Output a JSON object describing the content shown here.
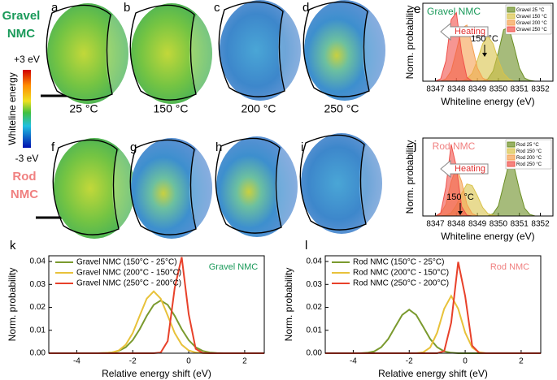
{
  "image_panels": [
    {
      "label": "a",
      "caption": "25 °C"
    },
    {
      "label": "b",
      "caption": "150 °C"
    },
    {
      "label": "c",
      "caption": "200 °C"
    },
    {
      "label": "d",
      "caption": "250 °C"
    },
    {
      "label": "f"
    },
    {
      "label": "g"
    },
    {
      "label": "h"
    },
    {
      "label": "i"
    }
  ],
  "row_labels": [
    {
      "lines": [
        "Gravel",
        "NMC"
      ],
      "color": "#1a9a5a"
    },
    {
      "lines": [
        "Rod",
        "NMC"
      ],
      "color": "#f08080"
    }
  ],
  "colorbar": {
    "max_label": "+3 eV",
    "min_label": "-3 eV",
    "label": "Whiteline energy"
  },
  "chart_data": [
    {
      "type": "area",
      "panel": "e",
      "title": "Gravel NMC",
      "title_color": "#1a9a5a",
      "annotations": [
        "Heating",
        "150 °C"
      ],
      "xlabel": "Whiteline energy (eV)",
      "ylabel": "Norm. probability",
      "legend": "upper right",
      "xlim": [
        8346.4,
        8352.6
      ],
      "xticks": [
        8347,
        8348,
        8349,
        8350,
        8351,
        8352
      ],
      "ylim": [
        0,
        1
      ],
      "x": [
        8347,
        8347.25,
        8347.5,
        8347.75,
        8348,
        8348.25,
        8348.5,
        8348.75,
        8349,
        8349.25,
        8349.5,
        8349.75,
        8350,
        8350.25,
        8350.5,
        8350.75,
        8351,
        8351.25,
        8351.5,
        8351.75,
        8352
      ],
      "series": [
        {
          "name": "Gravel 25 °C",
          "color": "#6b8e23",
          "values": [
            0,
            0,
            0,
            0,
            0,
            0,
            0,
            0,
            0,
            0,
            0.03,
            0.13,
            0.37,
            0.66,
            0.69,
            0.44,
            0.17,
            0.04,
            0.01,
            0,
            0
          ]
        },
        {
          "name": "Gravel 150 °C",
          "color": "#d9c34a",
          "values": [
            0,
            0,
            0,
            0,
            0,
            0,
            0.03,
            0.1,
            0.27,
            0.48,
            0.58,
            0.48,
            0.27,
            0.1,
            0.03,
            0,
            0,
            0,
            0,
            0,
            0
          ]
        },
        {
          "name": "Gravel 200 °C",
          "color": "#f5a050",
          "values": [
            0,
            0,
            0.03,
            0.13,
            0.39,
            0.68,
            0.72,
            0.46,
            0.17,
            0.04,
            0.01,
            0,
            0,
            0,
            0,
            0,
            0,
            0,
            0,
            0,
            0
          ]
        },
        {
          "name": "Gravel 250 °C",
          "color": "#f0504a",
          "values": [
            0,
            0.03,
            0.26,
            0.79,
            0.88,
            0.36,
            0.05,
            0,
            0,
            0,
            0,
            0,
            0,
            0,
            0,
            0,
            0,
            0,
            0,
            0,
            0
          ]
        }
      ]
    },
    {
      "type": "area",
      "panel": "j",
      "title": "Rod NMC",
      "title_color": "#f08080",
      "annotations": [
        "Heating",
        "150 °C"
      ],
      "xlabel": "Whiteline energy (eV)",
      "ylabel": "Norm. probability",
      "legend": "upper right",
      "xlim": [
        8346.4,
        8352.6
      ],
      "xticks": [
        8347,
        8348,
        8349,
        8350,
        8351,
        8352
      ],
      "ylim": [
        0,
        1
      ],
      "x": [
        8347,
        8347.25,
        8347.5,
        8347.75,
        8348,
        8348.25,
        8348.5,
        8348.75,
        8349,
        8349.25,
        8349.5,
        8349.75,
        8350,
        8350.25,
        8350.5,
        8350.75,
        8351,
        8351.25,
        8351.5,
        8351.75,
        8352
      ],
      "series": [
        {
          "name": "Rod 25 °C",
          "color": "#6b8e23",
          "values": [
            0,
            0,
            0,
            0,
            0,
            0,
            0,
            0,
            0,
            0,
            0,
            0.03,
            0.13,
            0.4,
            0.67,
            0.63,
            0.34,
            0.1,
            0.02,
            0,
            0
          ]
        },
        {
          "name": "Rod 150 °C",
          "color": "#d9c34a",
          "values": [
            0,
            0,
            0.01,
            0.04,
            0.14,
            0.29,
            0.41,
            0.39,
            0.26,
            0.11,
            0.03,
            0.01,
            0,
            0,
            0,
            0,
            0,
            0,
            0,
            0,
            0
          ]
        },
        {
          "name": "Rod 200 °C",
          "color": "#f5a050",
          "values": [
            0,
            0.03,
            0.15,
            0.44,
            0.62,
            0.44,
            0.15,
            0.03,
            0,
            0,
            0,
            0,
            0,
            0,
            0,
            0,
            0,
            0,
            0,
            0,
            0
          ]
        },
        {
          "name": "Rod 250 °C",
          "color": "#f0504a",
          "values": [
            0,
            0.04,
            0.37,
            0.92,
            0.63,
            0.12,
            0.01,
            0,
            0,
            0,
            0,
            0,
            0,
            0,
            0,
            0,
            0,
            0,
            0,
            0,
            0
          ]
        }
      ]
    },
    {
      "type": "line",
      "panel": "k",
      "title": "Gravel NMC",
      "title_color": "#1a9a5a",
      "xlabel": "Relative energy shift (eV)",
      "ylabel": "Norm. probability",
      "legend": "upper left",
      "xlim": [
        -5,
        2.7
      ],
      "xticks": [
        -4,
        -2,
        0,
        2
      ],
      "ylim": [
        0,
        0.0425
      ],
      "yticks": [
        {
          "value": 0,
          "label": "0.00"
        },
        {
          "value": 0.01,
          "label": "0.01"
        },
        {
          "value": 0.02,
          "label": "0.02"
        },
        {
          "value": 0.03,
          "label": "0.03"
        },
        {
          "value": 0.04,
          "label": "0.04"
        }
      ],
      "x": [
        -4,
        -3.75,
        -3.5,
        -3.25,
        -3,
        -2.75,
        -2.5,
        -2.25,
        -2,
        -1.75,
        -1.5,
        -1.25,
        -1,
        -0.75,
        -0.5,
        -0.25,
        0,
        0.25,
        0.5,
        0.75,
        1,
        1.25,
        1.5,
        1.75,
        2
      ],
      "series": [
        {
          "name": "Gravel NMC (150°C - 25°C)",
          "color": "#7a9a2e",
          "values": [
            0,
            0,
            0,
            0,
            0.0001,
            0.0003,
            0.001,
            0.0026,
            0.0057,
            0.0105,
            0.0163,
            0.0211,
            0.023,
            0.0211,
            0.0163,
            0.0105,
            0.0057,
            0.0026,
            0.001,
            0.0003,
            0.0001,
            0,
            0,
            0,
            0
          ]
        },
        {
          "name": "Gravel NMC (200°C - 150°C)",
          "color": "#e8c23a",
          "values": [
            0,
            0,
            0,
            0,
            0.0001,
            0.0003,
            0.0012,
            0.0037,
            0.0088,
            0.0164,
            0.0238,
            0.027,
            0.0238,
            0.0164,
            0.0088,
            0.0037,
            0.0012,
            0.0003,
            0.0001,
            0,
            0,
            0,
            0,
            0,
            0
          ]
        },
        {
          "name": "Gravel NMC (250°C - 200°C)",
          "color": "#e8412a",
          "values": [
            0,
            0,
            0,
            0,
            0,
            0,
            0,
            0,
            0,
            0,
            0,
            0,
            0.0003,
            0.0053,
            0.0285,
            0.0419,
            0.017,
            0.0019,
            0.0001,
            0,
            0,
            0,
            0,
            0,
            0
          ]
        }
      ]
    },
    {
      "type": "line",
      "panel": "l",
      "title": "Rod NMC",
      "title_color": "#f08080",
      "xlabel": "Relative energy shift (eV)",
      "ylabel": "Norm. probability",
      "legend": "upper left",
      "xlim": [
        -5,
        2.7
      ],
      "xticks": [
        -4,
        -2,
        0,
        2
      ],
      "ylim": [
        0,
        0.0425
      ],
      "yticks": [
        {
          "value": 0,
          "label": "0.00"
        },
        {
          "value": 0.01,
          "label": "0.01"
        },
        {
          "value": 0.02,
          "label": "0.02"
        },
        {
          "value": 0.03,
          "label": "0.03"
        },
        {
          "value": 0.04,
          "label": "0.04"
        }
      ],
      "x": [
        -4,
        -3.75,
        -3.5,
        -3.25,
        -3,
        -2.75,
        -2.5,
        -2.25,
        -2,
        -1.75,
        -1.5,
        -1.25,
        -1,
        -0.75,
        -0.5,
        -0.25,
        0,
        0.25,
        0.5,
        0.75,
        1,
        1.25,
        1.5,
        1.75,
        2
      ],
      "series": [
        {
          "name": "Rod NMC (150°C - 25°C)",
          "color": "#7a9a2e",
          "values": [
            0,
            0,
            0.0002,
            0.0008,
            0.0026,
            0.0062,
            0.0115,
            0.0167,
            0.019,
            0.0167,
            0.0115,
            0.0062,
            0.0026,
            0.0008,
            0.0002,
            0,
            0,
            0,
            0,
            0,
            0,
            0,
            0,
            0,
            0
          ]
        },
        {
          "name": "Rod NMC (200°C - 150°C)",
          "color": "#e8c23a",
          "values": [
            0,
            0,
            0,
            0,
            0,
            0,
            0,
            0,
            0,
            0,
            0.0004,
            0.0025,
            0.009,
            0.0194,
            0.025,
            0.0194,
            0.009,
            0.0025,
            0.0004,
            0,
            0,
            0,
            0,
            0,
            0
          ]
        },
        {
          "name": "Rod NMC (250°C - 200°C)",
          "color": "#e8412a",
          "values": [
            0,
            0,
            0,
            0,
            0,
            0,
            0,
            0,
            0,
            0,
            0,
            0,
            0,
            0.0009,
            0.0133,
            0.0398,
            0.0249,
            0.0033,
            0.0001,
            0,
            0,
            0,
            0,
            0,
            0
          ]
        }
      ]
    }
  ]
}
